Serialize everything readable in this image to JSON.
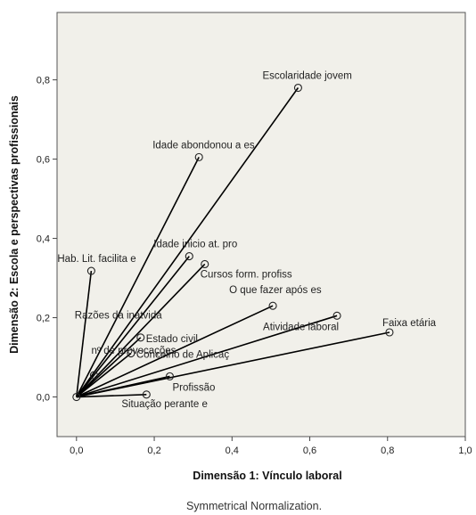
{
  "chart_data": {
    "type": "scatter",
    "xlabel": "Dimensão 1: Vínculo laboral",
    "ylabel": "Dimensão 2: Escola e perspectivas profissionais",
    "footnote": "Symmetrical Normalization.",
    "xlim": [
      -0.05,
      1.0
    ],
    "ylim": [
      -0.1,
      0.97
    ],
    "xticks": [
      "0,0",
      "0,2",
      "0,4",
      "0,6",
      "0,8",
      "1,0"
    ],
    "yticks": [
      "0,0",
      "0,2",
      "0,4",
      "0,6",
      "0,8"
    ],
    "origin": [
      0,
      0
    ],
    "background": "#f1f0ea",
    "line_color": "#000000",
    "points": [
      {
        "label": "Escolaridade jovem",
        "x": 0.57,
        "y": 0.78
      },
      {
        "label": "Idade abondonou a es",
        "x": 0.315,
        "y": 0.605
      },
      {
        "label": "Idade inicio at. pro",
        "x": 0.29,
        "y": 0.355
      },
      {
        "label": "Cursos form. profiss",
        "x": 0.33,
        "y": 0.335
      },
      {
        "label": "Hab. Lit. facilita e",
        "x": 0.038,
        "y": 0.318
      },
      {
        "label": "O que fazer após es",
        "x": 0.505,
        "y": 0.23
      },
      {
        "label": "Atividade laboral",
        "x": 0.67,
        "y": 0.205
      },
      {
        "label": "Faixa etária",
        "x": 0.805,
        "y": 0.163
      },
      {
        "label": "Razões da inatvida",
        "x": 0.0,
        "y": 0.0
      },
      {
        "label": "Estado civil",
        "x": 0.165,
        "y": 0.15
      },
      {
        "label": "Concelho de Aplicaç",
        "x": 0.14,
        "y": 0.11
      },
      {
        "label": "nº de provocações",
        "x": 0.045,
        "y": 0.055
      },
      {
        "label": "Profissão",
        "x": 0.24,
        "y": 0.052
      },
      {
        "label": "Situação perante e",
        "x": 0.18,
        "y": 0.006
      }
    ]
  }
}
